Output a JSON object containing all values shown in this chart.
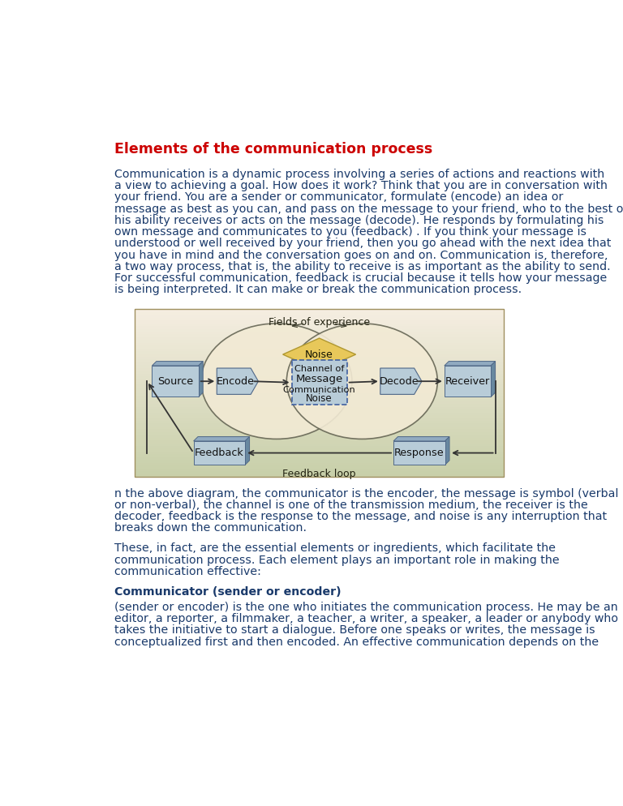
{
  "title": "Elements of the communication process",
  "title_color": "#cc0000",
  "body_color": "#1a3a6b",
  "heading2_color": "#1a3a6b",
  "bg_color": "#ffffff",
  "para1_lines": [
    "Communication is a dynamic process involving a series of actions and reactions with",
    "a view to achieving a goal. How does it work? Think that you are in conversation with",
    "your friend. You are a sender or communicator, formulate (encode) an idea or",
    "message as best as you can, and pass on the message to your friend, who to the best of",
    "his ability receives or acts on the message (decode). He responds by formulating his",
    "own message and communicates to you (feedback) . If you think your message is",
    "understood or well received by your friend, then you go ahead with the next idea that",
    "you have in mind and the conversation goes on and on. Communication is, therefore,",
    "a two way process, that is, the ability to receive is as important as the ability to send.",
    "For successful communication, feedback is crucial because it tells how your message",
    "is being interpreted. It can make or break the communication process."
  ],
  "para2_lines": [
    "n the above diagram, the communicator is the encoder, the message is symbol (verbal",
    "or non-verbal), the channel is one of the transmission medium, the receiver is the",
    "decoder, feedback is the response to the message, and noise is any interruption that",
    "breaks down the communication."
  ],
  "para3_lines": [
    "These, in fact, are the essential elements or ingredients, which facilitate the",
    "communication process. Each element plays an important role in making the",
    "communication effective:"
  ],
  "heading2": "Communicator (sender or encoder)",
  "para4_lines": [
    "(sender or encoder) is the one who initiates the communication process. He may be an",
    "editor, a reporter, a filmmaker, a teacher, a writer, a speaker, a leader or anybody who",
    "takes the initiative to start a dialogue. Before one speaks or writes, the message is",
    "conceptualized first and then encoded. An effective communication depends on the"
  ],
  "diag_bg_color": "#d6c9a4",
  "ellipse_face": "#f5eed8",
  "ellipse_edge": "#666655",
  "noise_fill": "#e8c85a",
  "noise_edge": "#b09830",
  "box_face": "#b8ccd8",
  "box_top": "#90aac0",
  "box_right": "#6888a0",
  "box_edge": "#506888",
  "msg_face": "#b8ccd8",
  "msg_edge": "#4060a0",
  "arrow_color": "#333333"
}
